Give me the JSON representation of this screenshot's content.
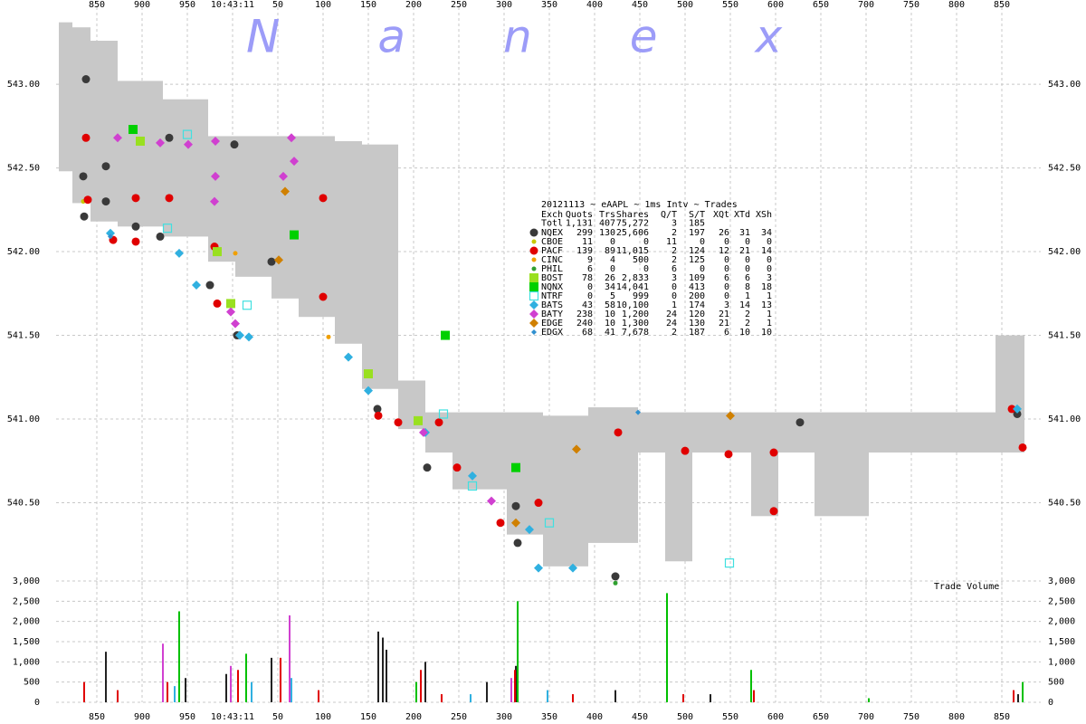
{
  "watermark": "Nanex",
  "table": {
    "title": "20121113 ~ eAAPL ~ 1ms Intv ~ Trades",
    "header": [
      "Exch",
      "Quots",
      "Trs",
      "Shares",
      "Q/T",
      "S/T",
      "XQt",
      "XTd",
      "XSh"
    ],
    "total": [
      "Totl",
      "1,131",
      "407",
      "75,272",
      "3",
      "185"
    ],
    "rows": [
      [
        "299",
        "130",
        "25,606",
        "2",
        "197",
        "26",
        "31",
        "34"
      ],
      [
        "11",
        "0",
        "0",
        "11",
        "0",
        "0",
        "0",
        "0"
      ],
      [
        "139",
        "89",
        "11,015",
        "2",
        "124",
        "12",
        "21",
        "14"
      ],
      [
        "9",
        "4",
        "500",
        "2",
        "125",
        "0",
        "0",
        "0"
      ],
      [
        "6",
        "0",
        "0",
        "6",
        "0",
        "0",
        "0",
        "0"
      ],
      [
        "78",
        "26",
        "2,833",
        "3",
        "109",
        "6",
        "6",
        "3"
      ],
      [
        "0",
        "34",
        "14,041",
        "0",
        "413",
        "0",
        "8",
        "18"
      ],
      [
        "0",
        "5",
        "999",
        "0",
        "200",
        "0",
        "1",
        "1"
      ],
      [
        "43",
        "58",
        "10,100",
        "1",
        "174",
        "3",
        "14",
        "13"
      ],
      [
        "238",
        "10",
        "1,200",
        "24",
        "120",
        "21",
        "2",
        "1"
      ],
      [
        "240",
        "10",
        "1,300",
        "24",
        "130",
        "21",
        "2",
        "1"
      ],
      [
        "68",
        "41",
        "7,678",
        "2",
        "187",
        "6",
        "10",
        "10"
      ]
    ]
  },
  "chart_data": [
    {
      "type": "scatter",
      "xlim": [
        -195,
        893
      ],
      "xticks": [
        {
          "value": -150,
          "label": "850"
        },
        {
          "value": -100,
          "label": "900"
        },
        {
          "value": -50,
          "label": "950"
        },
        {
          "value": 0,
          "label": "10:43:11"
        },
        50,
        100,
        150,
        200,
        250,
        300,
        350,
        400,
        450,
        500,
        550,
        600,
        650,
        700,
        750,
        800,
        850
      ],
      "ylim": [
        540.0,
        543.46
      ],
      "yticks": [
        {
          "value": 540.5,
          "label": "540.50"
        },
        {
          "value": 541,
          "label": "541.00"
        },
        {
          "value": 541.5,
          "label": "541.50"
        },
        {
          "value": 542,
          "label": "542.00"
        },
        {
          "value": 542.5,
          "label": "542.50"
        },
        {
          "value": 543,
          "label": "543.00"
        }
      ],
      "grid": true,
      "band": {
        "color": "#c8c8c8",
        "x": [
          -192,
          -177,
          -157,
          -127,
          -77,
          -27,
          3,
          43,
          73,
          113,
          143,
          183,
          213,
          243,
          303,
          343,
          393,
          448,
          478,
          508,
          573,
          603,
          643,
          703,
          843,
          873
        ],
        "low": [
          542.48,
          542.29,
          542.18,
          542.15,
          542.09,
          541.94,
          541.85,
          541.72,
          541.61,
          541.45,
          541.18,
          540.94,
          540.8,
          540.58,
          540.31,
          540.12,
          540.26,
          540.8,
          540.15,
          540.8,
          540.42,
          540.8,
          540.42,
          540.8,
          540.8,
          540.8
        ],
        "high": [
          543.37,
          543.34,
          543.26,
          543.02,
          542.91,
          542.69,
          542.69,
          542.69,
          542.69,
          542.66,
          542.64,
          541.23,
          541.04,
          541.04,
          541.04,
          541.02,
          541.07,
          541.04,
          541.04,
          541.04,
          541.04,
          541.04,
          541.04,
          541.04,
          541.5,
          541.5
        ]
      },
      "series": [
        {
          "name": "NQEX",
          "color": "#3a3a3a",
          "marker": "circle",
          "x": [
            -162,
            -165,
            -164,
            -140,
            -140,
            -107,
            -80,
            -70,
            -25,
            2,
            5,
            43,
            160,
            215,
            313,
            315,
            423,
            627,
            867
          ],
          "values": [
            543.03,
            542.45,
            542.21,
            542.51,
            542.3,
            542.15,
            542.09,
            542.68,
            541.8,
            542.64,
            541.5,
            541.94,
            541.06,
            540.71,
            540.48,
            540.26,
            540.06,
            540.98,
            541.03
          ]
        },
        {
          "name": "CBOE",
          "color": "#c8c800",
          "marker": "dot",
          "x": [
            -165
          ],
          "values": [
            542.3
          ]
        },
        {
          "name": "PACF",
          "color": "#e00000",
          "marker": "circle",
          "x": [
            -162,
            -160,
            -132,
            -107,
            -107,
            -70,
            -20,
            -17,
            100,
            100,
            161,
            183,
            228,
            248,
            338,
            296,
            426,
            500,
            548,
            598,
            598,
            861,
            873
          ],
          "values": [
            542.68,
            542.31,
            542.07,
            542.06,
            542.32,
            542.32,
            542.03,
            541.69,
            542.32,
            541.73,
            541.02,
            540.98,
            540.98,
            540.71,
            540.5,
            540.38,
            540.92,
            540.81,
            540.79,
            540.8,
            540.45,
            541.06,
            540.83
          ]
        },
        {
          "name": "CINC",
          "color": "#f0a000",
          "marker": "dot",
          "x": [
            3,
            106
          ],
          "values": [
            541.99,
            541.49
          ]
        },
        {
          "name": "PHIL",
          "color": "#30a030",
          "marker": "dot",
          "x": [
            423
          ],
          "values": [
            540.02
          ]
        },
        {
          "name": "BOST",
          "color": "#99e020",
          "marker": "square",
          "x": [
            -102,
            -2,
            -17,
            150,
            205
          ],
          "values": [
            542.66,
            541.69,
            542.0,
            541.27,
            540.99
          ]
        },
        {
          "name": "NQNX",
          "color": "#00d000",
          "marker": "square",
          "x": [
            -110,
            68,
            235,
            313
          ],
          "values": [
            542.73,
            542.1,
            541.5,
            540.71
          ]
        },
        {
          "name": "NTRF",
          "color": "#40e0e0",
          "marker": "square-open",
          "x": [
            -50,
            -72,
            16,
            233,
            265,
            350,
            549
          ],
          "values": [
            542.7,
            542.14,
            541.68,
            541.03,
            540.6,
            540.38,
            540.14
          ]
        },
        {
          "name": "BATS",
          "color": "#30b0e0",
          "marker": "diamond",
          "x": [
            -135,
            -59,
            -40,
            8,
            18,
            128,
            150,
            213,
            265,
            328,
            338,
            376,
            867
          ],
          "values": [
            542.11,
            541.99,
            541.8,
            541.5,
            541.49,
            541.37,
            541.17,
            540.92,
            540.66,
            540.34,
            540.11,
            540.11,
            541.06
          ]
        },
        {
          "name": "BATY",
          "color": "#d040d0",
          "marker": "diamond",
          "x": [
            -127,
            -80,
            -49,
            -19,
            -19,
            -20,
            -2,
            3,
            56,
            65,
            68,
            211,
            286
          ],
          "values": [
            542.68,
            542.65,
            542.64,
            542.66,
            542.45,
            542.3,
            541.64,
            541.57,
            542.45,
            542.68,
            542.54,
            540.92,
            540.51
          ]
        },
        {
          "name": "EDGE",
          "color": "#d08000",
          "marker": "diamond",
          "x": [
            58,
            51,
            313,
            380,
            550
          ],
          "values": [
            542.36,
            541.95,
            540.38,
            540.82,
            541.02
          ]
        },
        {
          "name": "EDGX",
          "color": "#3090d0",
          "marker": "small-diamond",
          "x": [
            -135,
            448
          ],
          "values": [
            542.09,
            541.04
          ]
        }
      ]
    },
    {
      "type": "bar",
      "label": "Trade Volume",
      "xlim": [
        -195,
        893
      ],
      "xticks": [
        {
          "value": -150,
          "label": "850"
        },
        {
          "value": -100,
          "label": "900"
        },
        {
          "value": -50,
          "label": "950"
        },
        {
          "value": 0,
          "label": "10:43:11"
        },
        50,
        100,
        150,
        200,
        250,
        300,
        350,
        400,
        450,
        500,
        550,
        600,
        650,
        700,
        750,
        800,
        850
      ],
      "ylim": [
        0,
        3000
      ],
      "yticks": [
        0,
        500,
        {
          "value": 1000,
          "label": "1,000"
        },
        {
          "value": 1500,
          "label": "1,500"
        },
        {
          "value": 2000,
          "label": "2,000"
        },
        {
          "value": 2500,
          "label": "2,500"
        },
        {
          "value": 3000,
          "label": "3,000"
        }
      ],
      "grid": true,
      "series": [
        {
          "color": "#222222",
          "x": [
            -140,
            -52,
            -7,
            43,
            161,
            166,
            170,
            213,
            281,
            313,
            423,
            528,
            868
          ],
          "values": [
            1250,
            600,
            700,
            1100,
            1750,
            1600,
            1300,
            1000,
            500,
            900,
            300,
            200,
            200
          ]
        },
        {
          "color": "#e00000",
          "x": [
            -164,
            -127,
            -72,
            6,
            53,
            95,
            208,
            231,
            312,
            376,
            498,
            576,
            863
          ],
          "values": [
            500,
            300,
            500,
            800,
            1100,
            300,
            800,
            200,
            800,
            200,
            200,
            300,
            300
          ]
        },
        {
          "color": "#00c000",
          "x": [
            -59,
            15,
            203,
            315,
            480,
            573,
            703,
            873
          ],
          "values": [
            2250,
            1200,
            500,
            2500,
            2700,
            800,
            100,
            500
          ]
        },
        {
          "color": "#d040d0",
          "x": [
            -77,
            -2,
            63,
            308
          ],
          "values": [
            1450,
            900,
            2150,
            600
          ]
        },
        {
          "color": "#30b0e0",
          "x": [
            -64,
            21,
            65,
            263,
            348
          ],
          "values": [
            400,
            500,
            600,
            200,
            300
          ]
        }
      ]
    }
  ]
}
